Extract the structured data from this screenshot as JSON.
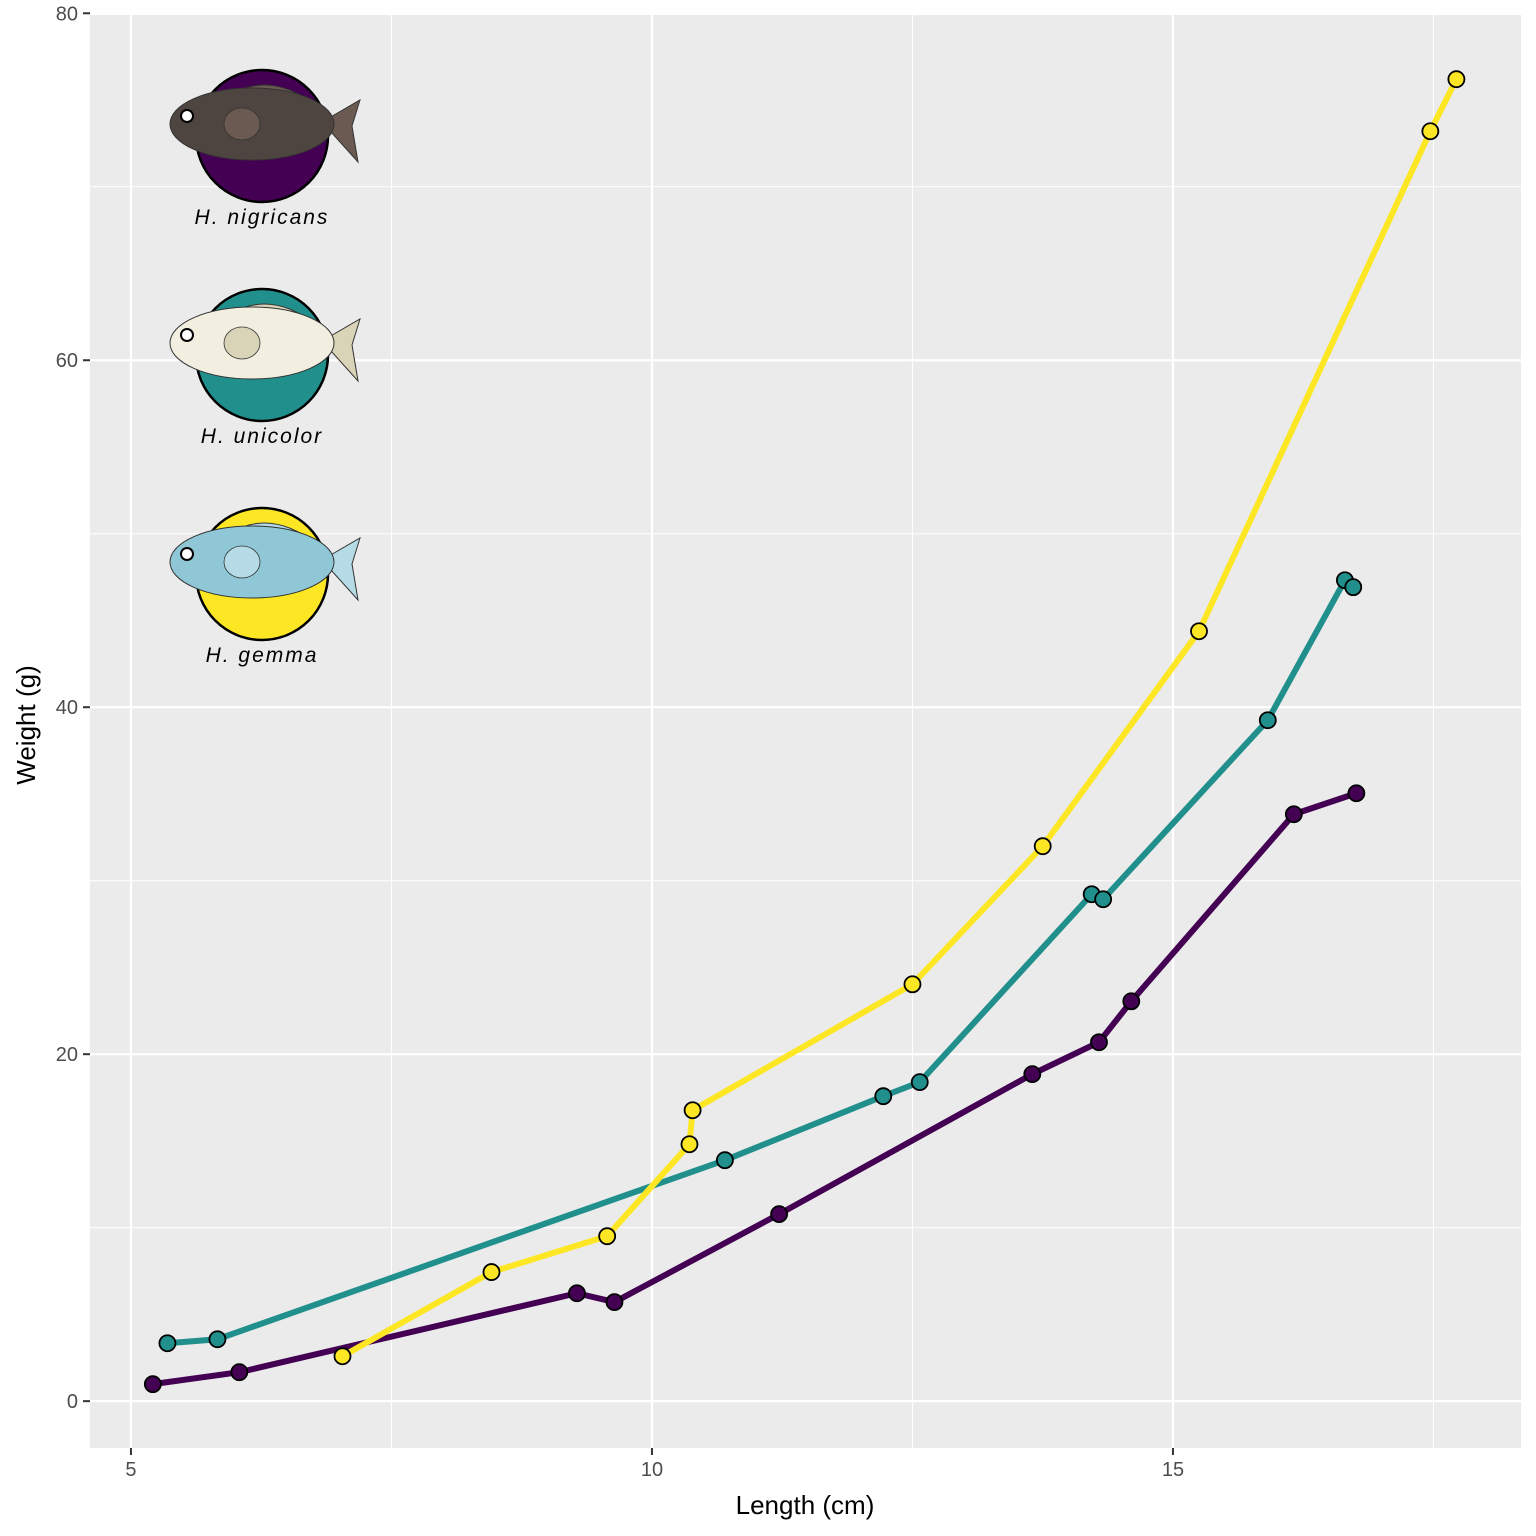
{
  "chart_data": {
    "type": "line",
    "x_label": "Length (cm)",
    "y_label": "Weight (g)",
    "xlim": [
      4.607,
      18.34
    ],
    "ylim": [
      -2.7,
      79.9
    ],
    "xticks": [
      5,
      10,
      15
    ],
    "yticks": [
      0,
      20,
      40,
      60,
      80
    ],
    "x_minor_ticks": [
      7.5,
      12.5,
      17.5
    ],
    "y_minor_ticks": [
      10,
      30,
      50,
      70
    ],
    "grid": true,
    "series": [
      {
        "name": "H. nigricans",
        "color": "#440154",
        "x": [
          5.21,
          6.04,
          9.28,
          9.64,
          11.22,
          13.65,
          14.29,
          14.6,
          16.16,
          16.76
        ],
        "values": [
          0.98,
          1.67,
          6.22,
          5.71,
          10.78,
          18.85,
          20.69,
          23.05,
          33.83,
          35.04
        ]
      },
      {
        "name": "H. unicolor",
        "color": "#21908c",
        "x": [
          5.35,
          5.83,
          10.7,
          12.22,
          12.57,
          14.22,
          14.33,
          15.91,
          16.65,
          16.73
        ],
        "values": [
          3.34,
          3.57,
          13.89,
          17.58,
          18.39,
          29.22,
          28.93,
          39.25,
          47.32,
          46.92
        ]
      },
      {
        "name": "H. gemma",
        "color": "#fde725",
        "x": [
          7.03,
          8.46,
          9.57,
          10.36,
          10.39,
          12.5,
          13.75,
          15.25,
          17.47,
          17.72
        ],
        "values": [
          2.59,
          7.44,
          9.51,
          14.81,
          16.77,
          24.03,
          31.99,
          44.38,
          73.2,
          76.2
        ]
      }
    ]
  }
}
